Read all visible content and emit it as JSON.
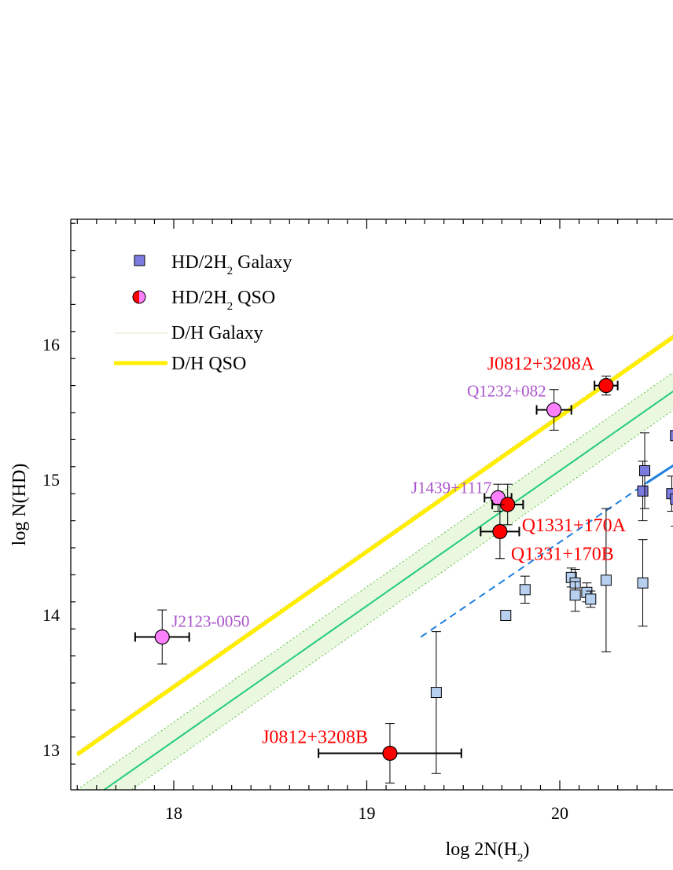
{
  "chart_data": {
    "type": "scatter",
    "title": "",
    "xlabel": "log 2N(H₂)",
    "ylabel": "log N(HD)",
    "xlim": [
      17.5,
      20.6
    ],
    "ylim": [
      12.7,
      16.9
    ],
    "x_ticks": [
      18,
      19,
      20
    ],
    "y_ticks": [
      13,
      14,
      15,
      16
    ],
    "grid": false,
    "legend": {
      "placement": "top-left",
      "entries": [
        {
          "label": "HD/2H₂ Galaxy",
          "marker": "square"
        },
        {
          "label": "HD/2H₂ QSO",
          "marker": "half-circle"
        },
        {
          "label": "D/H Galaxy",
          "marker": "thin-line"
        },
        {
          "label": "D/H QSO",
          "marker": "thick-line"
        }
      ]
    },
    "colors": {
      "qso_point": "#ff0000",
      "qso_point_alt": "#ff80ff",
      "galaxy_dark": "#7b7be0",
      "galaxy_light": "#b8d0f0",
      "dh_qso_line": "#ffee00",
      "dh_galaxy_line": "#22cc77",
      "dh_galaxy_band": "#eaf8e0",
      "fit_line": "#1f7fe0",
      "red_label": "#ff0000",
      "purple_label": "#aa55cc"
    },
    "lines": {
      "dh_qso": {
        "slope": 1.0,
        "intercept": -4.53
      },
      "dh_galaxy": {
        "slope": 1.0,
        "intercept": -4.93,
        "band_half_width": 0.14
      },
      "fit_dashed": {
        "x_start": 19.28,
        "y_start": 13.84,
        "x_end": 20.45,
        "y_end": 14.98
      },
      "fit_solid": {
        "x_start": 20.45,
        "y_start": 14.98,
        "x_end": 20.6,
        "y_end": 15.12
      }
    },
    "series": [
      {
        "name": "QSO",
        "points": [
          {
            "label": "J0812+3208A",
            "x": 20.24,
            "y": 15.7,
            "xerr": 0.06,
            "yerr": 0.07,
            "color": "red"
          },
          {
            "label": "Q1232+082",
            "x": 19.97,
            "y": 15.52,
            "xerr": 0.09,
            "yerr": 0.15,
            "color": "pink"
          },
          {
            "label": "J1439+1117",
            "x": 19.68,
            "y": 14.87,
            "xerr": 0.07,
            "yerr": 0.1,
            "color": "pink"
          },
          {
            "label": "Q1331+170A",
            "x": 19.73,
            "y": 14.82,
            "xerr": 0.08,
            "yerr": 0.15,
            "color": "red"
          },
          {
            "label": "Q1331+170B",
            "x": 19.69,
            "y": 14.62,
            "xerr": 0.1,
            "yerr": 0.2,
            "color": "red"
          },
          {
            "label": "J2123-0050",
            "x": 17.94,
            "y": 13.84,
            "xerr": 0.14,
            "yerr": 0.2,
            "color": "pink"
          },
          {
            "label": "J0812+3208B",
            "x": 19.12,
            "y": 12.98,
            "xerr": 0.37,
            "yerr": 0.22,
            "color": "red"
          }
        ]
      },
      {
        "name": "Galaxy",
        "points": [
          {
            "x": 19.36,
            "y": 13.43,
            "yerr_up": 0.45,
            "yerr_down": 0.6,
            "shade": "light"
          },
          {
            "x": 19.72,
            "y": 14.0,
            "yerr_up": 0.0,
            "yerr_down": 0.0,
            "shade": "light"
          },
          {
            "x": 19.82,
            "y": 14.19,
            "yerr_up": 0.1,
            "yerr_down": 0.1,
            "shade": "light"
          },
          {
            "x": 20.06,
            "y": 14.28,
            "yerr_up": 0.07,
            "yerr_down": 0.07,
            "shade": "light"
          },
          {
            "x": 20.08,
            "y": 14.24,
            "yerr_up": 0.1,
            "yerr_down": 0.1,
            "shade": "light"
          },
          {
            "x": 20.08,
            "y": 14.15,
            "yerr_up": 0.1,
            "yerr_down": 0.12,
            "shade": "light"
          },
          {
            "x": 20.14,
            "y": 14.17,
            "yerr_up": 0.07,
            "yerr_down": 0.07,
            "shade": "light"
          },
          {
            "x": 20.16,
            "y": 14.12,
            "yerr_up": 0.06,
            "yerr_down": 0.06,
            "shade": "light"
          },
          {
            "x": 20.24,
            "y": 14.26,
            "yerr_up": 0.53,
            "yerr_down": 0.53,
            "shade": "light"
          },
          {
            "x": 20.43,
            "y": 14.24,
            "yerr_up": 0.32,
            "yerr_down": 0.32,
            "shade": "light"
          },
          {
            "x": 20.43,
            "y": 14.92,
            "yerr_up": 0.22,
            "yerr_down": 0.22,
            "shade": "dark"
          },
          {
            "x": 20.44,
            "y": 15.07,
            "yerr_up": 0.28,
            "yerr_down": 0.28,
            "shade": "dark"
          },
          {
            "x": 20.58,
            "y": 14.9,
            "yerr_up": 0.13,
            "yerr_down": 0.13,
            "shade": "dark"
          },
          {
            "x": 20.6,
            "y": 15.33,
            "yerr_up": 0.0,
            "yerr_down": 0.0,
            "shade": "dark"
          },
          {
            "x": 20.6,
            "y": 14.86,
            "yerr_up": 0.0,
            "yerr_down": 0.2,
            "shade": "dark"
          }
        ]
      }
    ]
  }
}
